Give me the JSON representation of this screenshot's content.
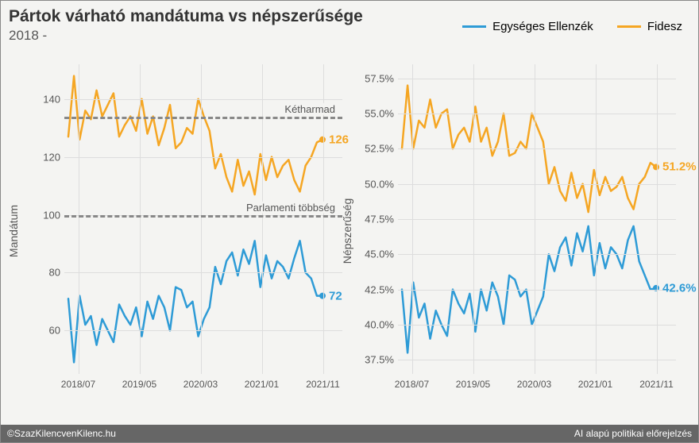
{
  "title": "Pártok várható mandátuma vs népszerűsége",
  "subtitle": "2018 -",
  "legend": {
    "series1": {
      "label": "Egységes Ellenzék",
      "color": "#2E9BD6"
    },
    "series2": {
      "label": "Fidesz",
      "color": "#F5A623"
    }
  },
  "footer": {
    "left": "©SzazKilencvenKilenc.hu",
    "right": "AI alapú politikai előrejelzés"
  },
  "x_axis": {
    "ticks": [
      "2018/07",
      "2019/05",
      "2020/03",
      "2021/01",
      "2021/11"
    ],
    "tick_positions_pct": [
      5,
      27,
      49,
      71,
      93
    ]
  },
  "left_panel": {
    "ylabel": "Mandátum",
    "ymin": 45,
    "ymax": 152,
    "yticks": [
      60,
      80,
      100,
      120,
      140
    ],
    "ref_lines": [
      {
        "value": 134,
        "label": "Kétharmad"
      },
      {
        "value": 100,
        "label": "Parlamenti többség"
      }
    ],
    "series_ellenzek": [
      71,
      49,
      72,
      62,
      65,
      55,
      64,
      60,
      56,
      69,
      65,
      62,
      68,
      58,
      70,
      64,
      72,
      68,
      60,
      75,
      74,
      68,
      70,
      58,
      64,
      68,
      82,
      76,
      84,
      87,
      79,
      88,
      83,
      91,
      75,
      86,
      78,
      84,
      82,
      78,
      85,
      91,
      80,
      78,
      72,
      72
    ],
    "series_fidesz": [
      127,
      148,
      126,
      136,
      133,
      143,
      134,
      138,
      142,
      127,
      131,
      134,
      129,
      140,
      128,
      134,
      124,
      130,
      138,
      123,
      125,
      130,
      128,
      140,
      134,
      129,
      116,
      121,
      113,
      108,
      119,
      110,
      115,
      107,
      121,
      112,
      120,
      113,
      117,
      119,
      112,
      108,
      117,
      120,
      125,
      126
    ],
    "end_ellenzek": {
      "value": 72,
      "label": "72"
    },
    "end_fidesz": {
      "value": 126,
      "label": "126"
    }
  },
  "right_panel": {
    "ylabel": "Népszerűség",
    "ymin": 36.5,
    "ymax": 58.5,
    "yticks": [
      37.5,
      40.0,
      42.5,
      45.0,
      47.5,
      50.0,
      52.5,
      55.0,
      57.5
    ],
    "ytick_labels": [
      "37.5%",
      "40.0%",
      "42.5%",
      "45.0%",
      "47.5%",
      "50.0%",
      "52.5%",
      "55.0%",
      "57.5%"
    ],
    "series_ellenzek": [
      42.5,
      38.0,
      43.0,
      40.5,
      41.5,
      39.0,
      41.0,
      40.0,
      39.2,
      42.5,
      41.5,
      40.8,
      42.2,
      39.5,
      42.5,
      41.0,
      43.0,
      42.0,
      40.0,
      43.5,
      43.2,
      42.0,
      42.5,
      40.0,
      41.0,
      42.0,
      45.0,
      43.8,
      45.5,
      46.2,
      44.2,
      46.5,
      45.2,
      47.0,
      43.5,
      45.8,
      44.0,
      45.5,
      45.0,
      44.0,
      46.0,
      47.0,
      44.5,
      43.5,
      42.5,
      42.6
    ],
    "series_fidesz": [
      52.5,
      57.0,
      52.5,
      54.5,
      54.0,
      56.0,
      54.0,
      55.0,
      55.3,
      52.5,
      53.5,
      54.0,
      53.0,
      55.5,
      53.0,
      54.0,
      52.0,
      53.0,
      55.0,
      52.0,
      52.2,
      53.0,
      52.5,
      55.0,
      54.0,
      53.0,
      50.0,
      51.2,
      49.5,
      48.8,
      50.8,
      49.0,
      50.0,
      48.0,
      51.0,
      49.2,
      50.5,
      49.5,
      49.8,
      50.5,
      49.0,
      48.2,
      50.0,
      50.5,
      51.5,
      51.2
    ],
    "end_ellenzek": {
      "value": 42.6,
      "label": "42.6%"
    },
    "end_fidesz": {
      "value": 51.2,
      "label": "51.2%"
    }
  },
  "style": {
    "background": "#f4f4f2",
    "grid_color": "#dddddd",
    "text_color": "#555555",
    "line_width": 2.5,
    "ref_line_color": "#888888"
  }
}
